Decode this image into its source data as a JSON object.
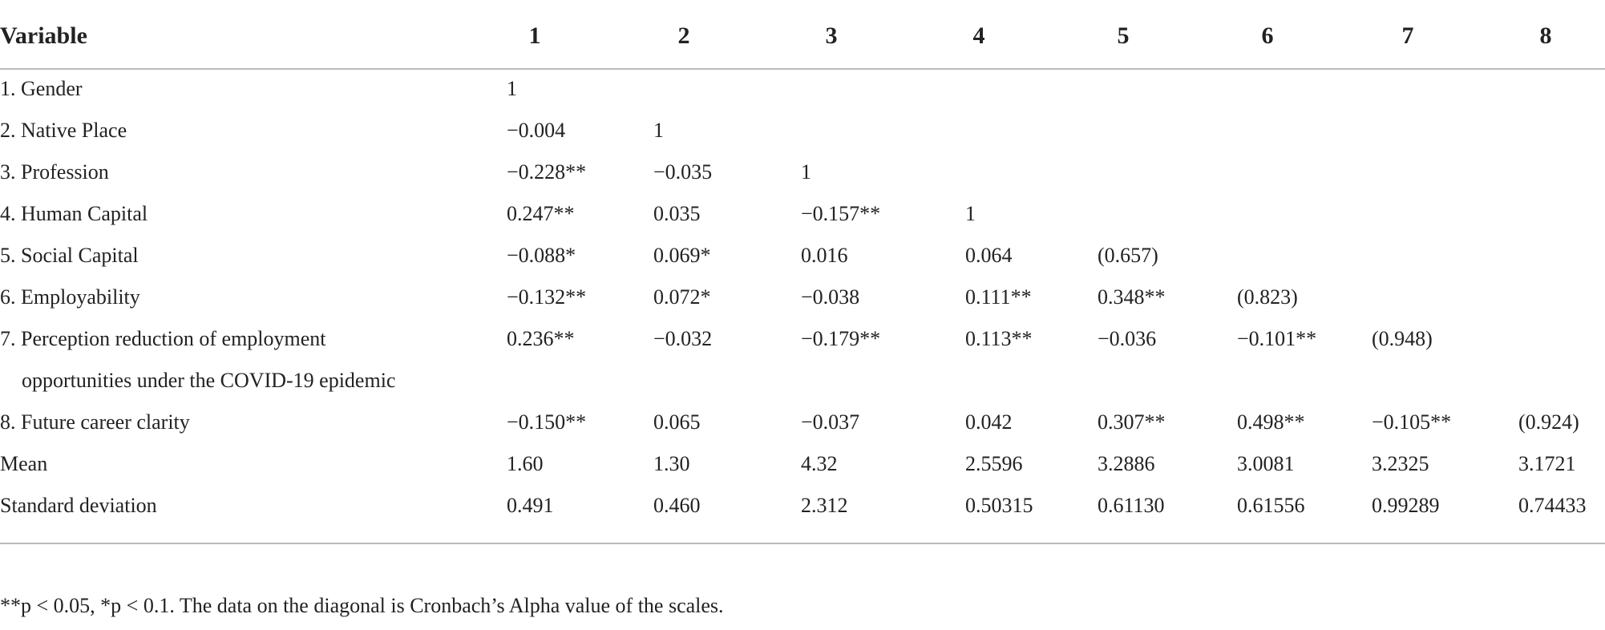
{
  "table": {
    "header": [
      "Variable",
      "1",
      "2",
      "3",
      "4",
      "5",
      "6",
      "7",
      "8"
    ],
    "rows": [
      {
        "label": [
          "1. Gender"
        ],
        "cells": [
          "1"
        ]
      },
      {
        "label": [
          "2. Native Place"
        ],
        "cells": [
          "−0.004",
          "1"
        ]
      },
      {
        "label": [
          "3. Profession"
        ],
        "cells": [
          "−0.228**",
          "−0.035",
          "1"
        ]
      },
      {
        "label": [
          "4. Human Capital"
        ],
        "cells": [
          "0.247**",
          "0.035",
          "−0.157**",
          "1"
        ]
      },
      {
        "label": [
          "5. Social Capital"
        ],
        "cells": [
          "−0.088*",
          "0.069*",
          "0.016",
          "0.064",
          "(0.657)"
        ]
      },
      {
        "label": [
          "6. Employability"
        ],
        "cells": [
          "−0.132**",
          "0.072*",
          "−0.038",
          "0.111**",
          "0.348**",
          "(0.823)"
        ]
      },
      {
        "label": [
          "7. Perception reduction of employment",
          "opportunities under the COVID-19 epidemic"
        ],
        "cells": [
          "0.236**",
          "−0.032",
          "−0.179**",
          "0.113**",
          "−0.036",
          "−0.101**",
          "(0.948)"
        ]
      },
      {
        "label": [
          "8. Future career clarity"
        ],
        "cells": [
          "−0.150**",
          "0.065",
          "−0.037",
          "0.042",
          "0.307**",
          "0.498**",
          "−0.105**",
          "(0.924)"
        ]
      },
      {
        "label": [
          "Mean"
        ],
        "cells": [
          "1.60",
          "1.30",
          "4.32",
          "2.5596",
          "3.2886",
          "3.0081",
          "3.2325",
          "3.1721"
        ]
      },
      {
        "label": [
          "Standard deviation"
        ],
        "cells": [
          "0.491",
          "0.460",
          "2.312",
          "0.50315",
          "0.61130",
          "0.61556",
          "0.99289",
          "0.74433"
        ]
      }
    ],
    "footnote": "**p < 0.05, *p < 0.1. The data on the diagonal is Cronbach’s Alpha value of the scales."
  }
}
